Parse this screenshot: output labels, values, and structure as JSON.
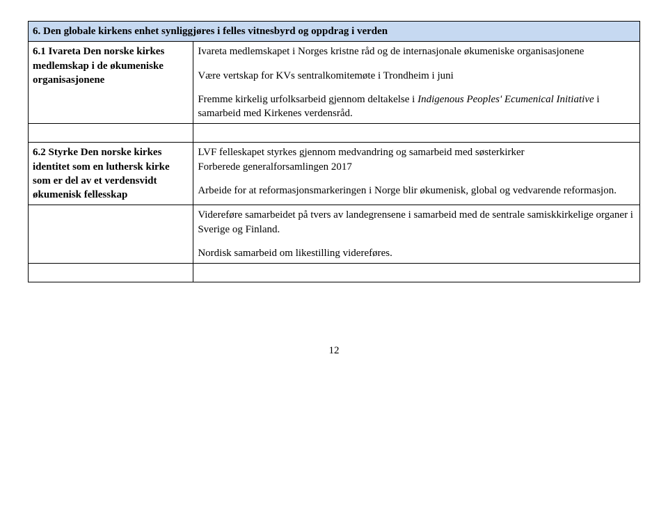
{
  "colors": {
    "header_bg": "#c6d9f1",
    "border": "#000000",
    "text": "#000000",
    "page_bg": "#ffffff"
  },
  "section_header": "6. Den globale kirkens enhet synliggjøres i felles vitnesbyrd og oppdrag i verden",
  "rows": [
    {
      "label": "6.1 Ivareta Den norske kirkes medlemskap i de økumeniske organisasjonene",
      "body": {
        "p1": "Ivareta medlemskapet i Norges kristne råd og de internasjonale økumeniske organisasjonene",
        "p2": "Være vertskap for KVs sentralkomitemøte i Trondheim i juni",
        "p3_pre": "Fremme kirkelig urfolksarbeid gjennom deltakelse i ",
        "p3_italic": "Indigenous Peoples' Ecumenical Initiative",
        "p3_post": " i samarbeid med Kirkenes verdensråd."
      }
    },
    {
      "label": "6.2 Styrke Den norske kirkes identitet som en luthersk kirke som er del av et verdensvidt økumenisk fellesskap",
      "body": {
        "p1": "LVF felleskapet styrkes gjennom medvandring og samarbeid med søsterkirker",
        "p2": "Forberede generalforsamlingen 2017",
        "p3": "Arbeide for at reformasjonsmarkeringen i Norge blir økumenisk, global og vedvarende reformasjon."
      }
    },
    {
      "label": "",
      "body": {
        "p1": "Videreføre samarbeidet på tvers av landegrensene i samarbeid med de sentrale samiskkirkelige organer i Sverige og Finland.",
        "p2": "Nordisk samarbeid om likestilling videreføres."
      }
    }
  ],
  "page_number": "12"
}
